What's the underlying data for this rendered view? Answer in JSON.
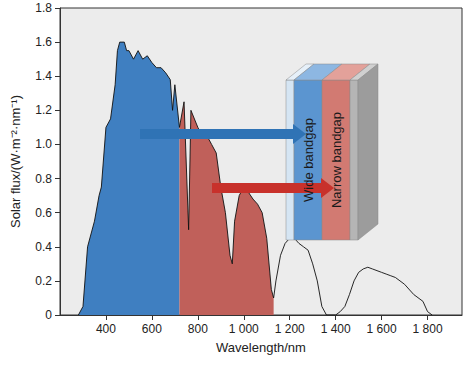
{
  "chart_data": {
    "type": "area",
    "x_label": "Wavelength/nm",
    "y_label": "Solar flux/(W·m⁻²·nm⁻¹)",
    "xlim": [
      200,
      1950
    ],
    "xticks": [
      400,
      600,
      800,
      {
        "value": 1000,
        "label": "1 000"
      },
      {
        "value": 1200,
        "label": "1 200"
      },
      {
        "value": 1400,
        "label": "1 400"
      },
      {
        "value": 1600,
        "label": "1 600"
      },
      {
        "value": 1800,
        "label": "1 800"
      }
    ],
    "ylim": [
      0,
      1.8
    ],
    "yticks": [
      0,
      0.2,
      0.4,
      0.6,
      0.8,
      {
        "value": 1,
        "label": "1.0"
      },
      1.2,
      1.4,
      1.6,
      1.8
    ],
    "grid": false,
    "annotations": [
      "Wide bandgap",
      "Narrow bandgap"
    ],
    "series": [
      {
        "type": "area",
        "color": "#3f7fc1",
        "x": [
          280,
          300,
          320,
          350,
          370,
          380,
          400,
          420,
          440,
          450,
          460,
          480,
          490,
          500,
          520,
          540,
          560,
          580,
          600,
          620,
          640,
          660,
          680,
          690,
          700,
          720
        ],
        "values": [
          0,
          0.05,
          0.4,
          0.55,
          0.7,
          0.75,
          1.1,
          1.15,
          1.35,
          1.55,
          1.6,
          1.6,
          1.55,
          1.55,
          1.5,
          1.55,
          1.5,
          1.52,
          1.48,
          1.45,
          1.45,
          1.42,
          1.38,
          1.2,
          1.35,
          1.1
        ]
      },
      {
        "type": "area",
        "color": "#c0605a",
        "x": [
          720,
          740,
          760,
          770,
          800,
          820,
          840,
          860,
          880,
          900,
          920,
          940,
          950,
          960,
          980,
          1000,
          1020,
          1040,
          1060,
          1080,
          1100,
          1120,
          1130
        ],
        "values": [
          1.1,
          1.25,
          0.5,
          1.2,
          1.1,
          1.05,
          1.05,
          1.0,
          0.95,
          0.75,
          0.6,
          0.35,
          0.3,
          0.55,
          0.7,
          0.75,
          0.72,
          0.68,
          0.65,
          0.6,
          0.45,
          0.15,
          0.1
        ]
      },
      {
        "type": "line",
        "color": "#111111",
        "x": [
          280,
          300,
          320,
          350,
          370,
          380,
          400,
          420,
          440,
          450,
          460,
          480,
          490,
          500,
          520,
          540,
          560,
          580,
          600,
          620,
          640,
          660,
          680,
          690,
          700,
          720,
          740,
          760,
          770,
          800,
          820,
          840,
          860,
          880,
          900,
          920,
          940,
          950,
          960,
          980,
          1000,
          1020,
          1040,
          1060,
          1080,
          1100,
          1120,
          1130,
          1140,
          1160,
          1180,
          1200,
          1220,
          1240,
          1260,
          1280,
          1300,
          1320,
          1340,
          1360,
          1380,
          1400,
          1420,
          1440,
          1460,
          1480,
          1500,
          1520,
          1540,
          1560,
          1580,
          1600,
          1620,
          1640,
          1660,
          1680,
          1700,
          1740,
          1780,
          1800,
          1820
        ],
        "values": [
          0,
          0.05,
          0.4,
          0.55,
          0.7,
          0.75,
          1.1,
          1.15,
          1.35,
          1.55,
          1.6,
          1.6,
          1.55,
          1.55,
          1.5,
          1.55,
          1.5,
          1.52,
          1.48,
          1.45,
          1.45,
          1.42,
          1.38,
          1.2,
          1.35,
          1.1,
          1.25,
          0.5,
          1.2,
          1.1,
          1.05,
          1.05,
          1.0,
          0.95,
          0.75,
          0.6,
          0.35,
          0.3,
          0.55,
          0.7,
          0.75,
          0.72,
          0.68,
          0.65,
          0.6,
          0.45,
          0.15,
          0.1,
          0.2,
          0.35,
          0.42,
          0.45,
          0.45,
          0.42,
          0.4,
          0.38,
          0.3,
          0.2,
          0.05,
          0,
          0,
          0,
          0.02,
          0.05,
          0.12,
          0.2,
          0.25,
          0.27,
          0.28,
          0.27,
          0.26,
          0.25,
          0.24,
          0.23,
          0.22,
          0.2,
          0.18,
          0.12,
          0.08,
          0.02,
          0
        ]
      }
    ]
  }
}
